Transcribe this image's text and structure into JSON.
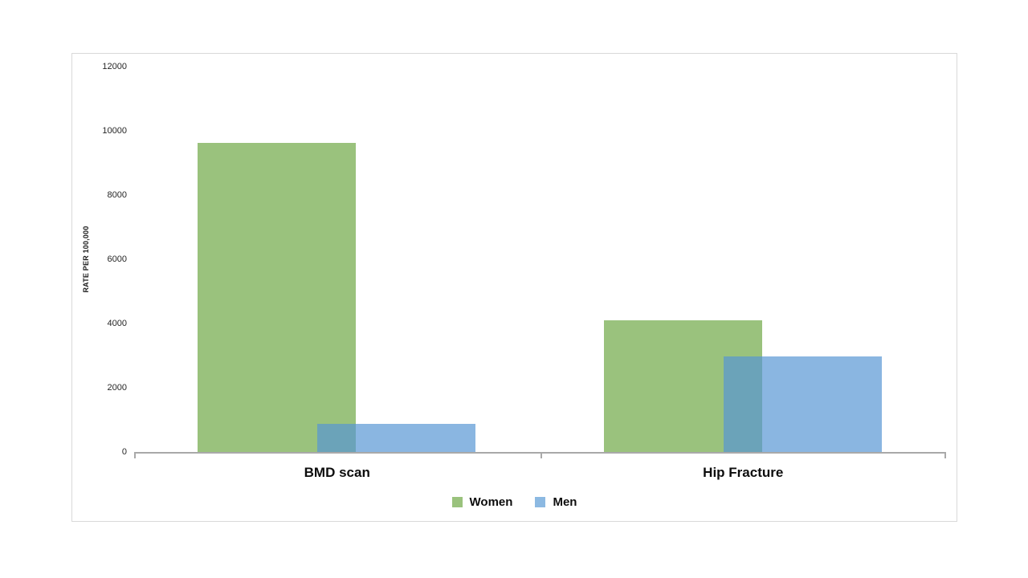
{
  "chart_data": {
    "type": "bar",
    "title": "",
    "categories": [
      "BMD scan",
      "Hip Fracture"
    ],
    "series": [
      {
        "name": "Women",
        "color": "#9ac27d",
        "legend_color": "#9ac27d",
        "values": [
          9625,
          4100
        ]
      },
      {
        "name": "Men",
        "color": "rgba(85,149,212,0.69)",
        "legend_color": "#8cb9e2",
        "values": [
          875,
          2975
        ]
      }
    ],
    "xlabel": "",
    "ylabel": "RATE PER 100,000",
    "ylim": [
      0,
      12000
    ],
    "yticks": [
      0,
      2000,
      4000,
      6000,
      8000,
      10000,
      12000
    ],
    "grid": false,
    "legend_position": "bottom",
    "bars_overlap": true,
    "overlap_color_observed": "#6ba6b4",
    "axis_color": "#a9a9a9",
    "frame_border_color": "#d9d9d9",
    "background_color": "#ffffff"
  }
}
